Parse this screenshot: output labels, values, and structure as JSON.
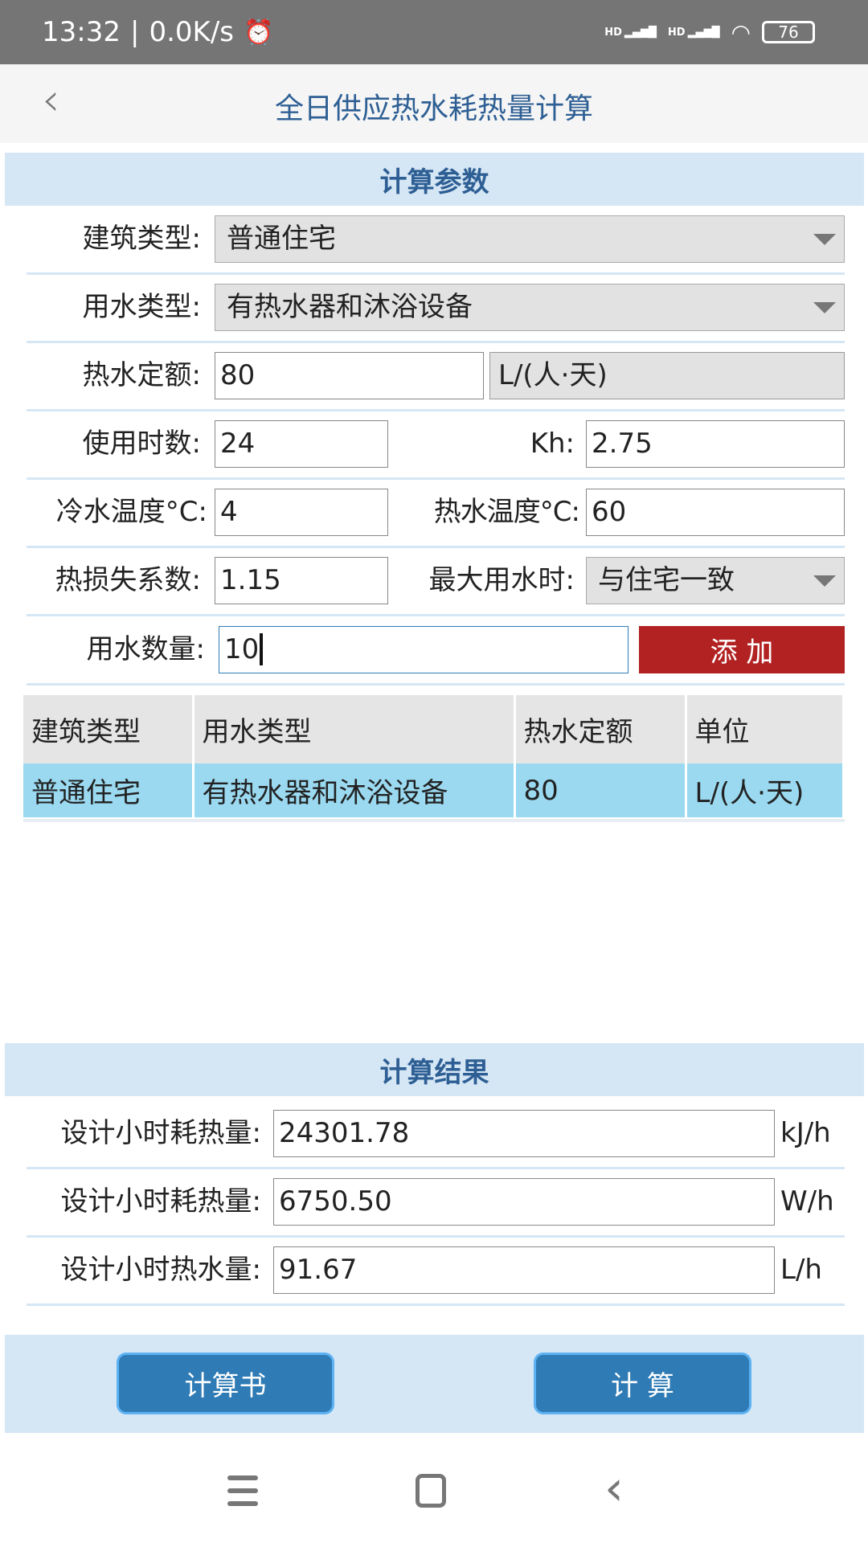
{
  "status": {
    "time": "13:32",
    "speed": "0.0K/s",
    "battery": "76",
    "signal1": "HD",
    "signal2": "HD"
  },
  "header": {
    "title": "全日供应热水耗热量计算"
  },
  "params": {
    "section_title": "计算参数",
    "building_type_label": "建筑类型:",
    "building_type": "普通住宅",
    "water_type_label": "用水类型:",
    "water_type": "有热水器和沐浴设备",
    "quota_label": "热水定额:",
    "quota": "80",
    "quota_unit": "L/(人·天)",
    "hours_label": "使用时数:",
    "hours": "24",
    "kh_label": "Kh:",
    "kh": "2.75",
    "cold_label": "冷水温度°C:",
    "cold": "4",
    "hot_label": "热水温度°C:",
    "hot": "60",
    "loss_label": "热损失系数:",
    "loss": "1.15",
    "peak_label": "最大用水时:",
    "peak": "与住宅一致",
    "count_label": "用水数量:",
    "count": "10",
    "add_label": "添 加"
  },
  "table": {
    "headers": [
      "建筑类型",
      "用水类型",
      "热水定额",
      "单位"
    ],
    "rows": [
      [
        "普通住宅",
        "有热水器和沐浴设备",
        "80",
        "L/(人·天)"
      ]
    ]
  },
  "results": {
    "section_title": "计算结果",
    "items": [
      {
        "label": "设计小时耗热量:",
        "value": "24301.78",
        "unit": "kJ/h"
      },
      {
        "label": "设计小时耗热量:",
        "value": "6750.50",
        "unit": "W/h"
      },
      {
        "label": "设计小时热水量:",
        "value": "91.67",
        "unit": "L/h"
      }
    ]
  },
  "footer": {
    "report_label": "计算书",
    "calc_label": "计 算"
  },
  "colors": {
    "accent": "#2f7bb5",
    "add": "#b22222",
    "section": "#d5e6f5",
    "selected_row": "#9ad9f0"
  }
}
